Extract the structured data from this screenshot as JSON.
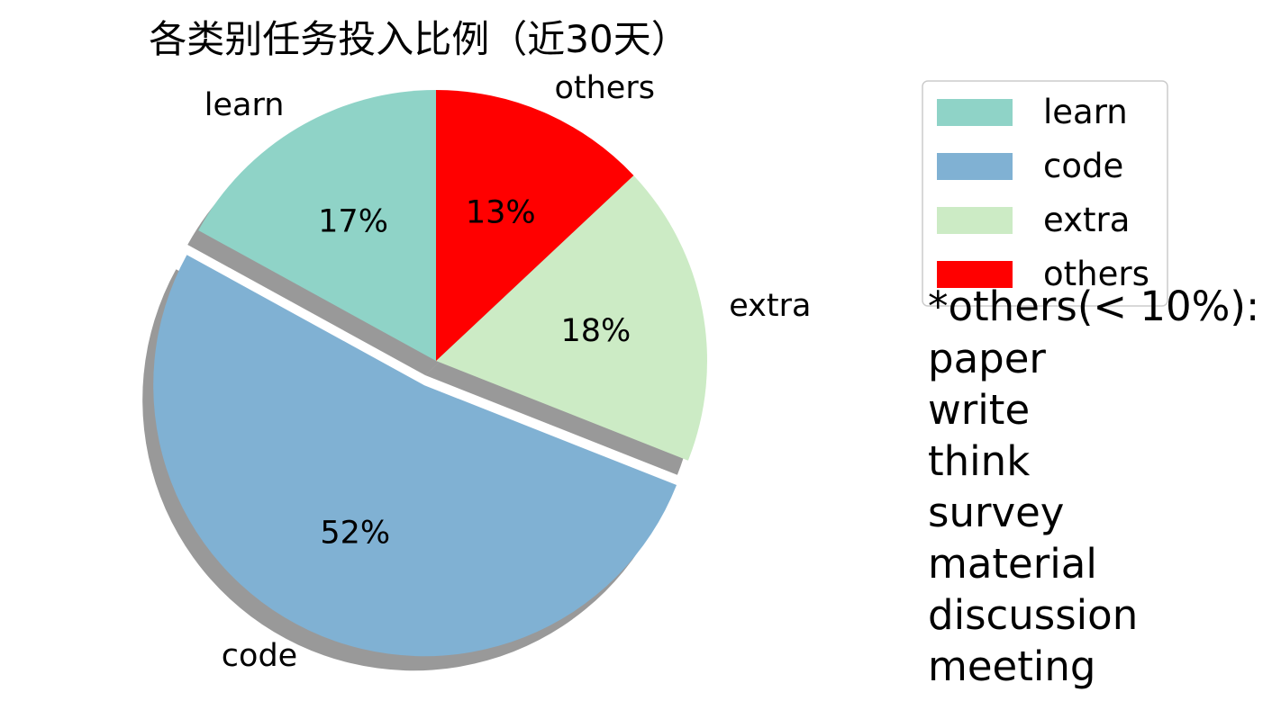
{
  "chart_data": {
    "type": "pie",
    "title": "各类别任务投入比例（近30天）",
    "categories": [
      "learn",
      "code",
      "extra",
      "others"
    ],
    "values": [
      17,
      52,
      18,
      13
    ],
    "value_labels": [
      "17%",
      "52%",
      "18%",
      "13%"
    ],
    "colors": [
      "#8fd3c7",
      "#80b1d3",
      "#ccebc5",
      "#ff0000"
    ],
    "exploded": [
      "code"
    ],
    "shadow": true,
    "start_angle_deg": 90,
    "direction": "counterclockwise",
    "legend_position": "upper-right",
    "legend": [
      "learn",
      "code",
      "extra",
      "others"
    ],
    "note_title": "*others(< 10%):",
    "note_items": [
      "paper",
      "write",
      "think",
      "survey",
      "material",
      "discussion",
      "meeting"
    ]
  }
}
